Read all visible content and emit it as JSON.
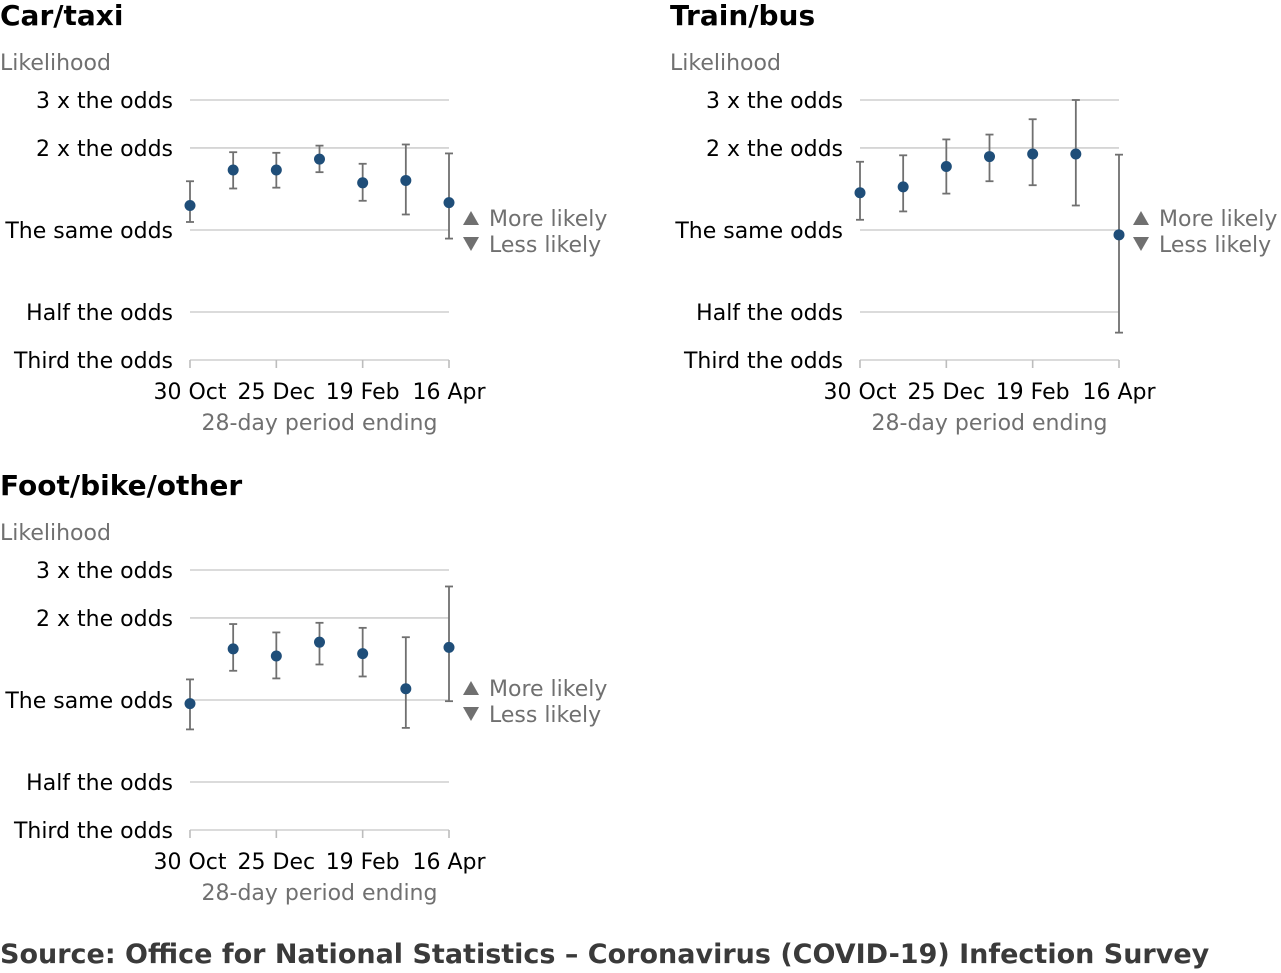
{
  "source": "Source: Office for National Statistics – Coronavirus (COVID-19) Infection Survey",
  "colors": {
    "point": "#1f4e79",
    "errbar": "#707070",
    "grid": "#cfcfcf",
    "muted": "#707070"
  },
  "icons": {
    "up": "triangle-up-icon",
    "down": "triangle-down-icon"
  },
  "chart_data": [
    {
      "type": "scatter",
      "title": "Car/taxi",
      "ylabel": "Likelihood",
      "xlabel": "28-day period ending",
      "y_scale": "log",
      "yticks": [
        {
          "value": 3,
          "label": "3 x the odds"
        },
        {
          "value": 2,
          "label": "2 x the odds"
        },
        {
          "value": 1,
          "label": "The same odds"
        },
        {
          "value": 0.5,
          "label": "Half the odds"
        },
        {
          "value": 0.3333,
          "label": "Third the odds"
        }
      ],
      "ylim": [
        0.3333,
        3
      ],
      "xticks": [
        "30 Oct",
        "25 Dec",
        "19 Feb",
        "16 Apr"
      ],
      "x": [
        "30 Oct",
        "27 Nov",
        "25 Dec",
        "22 Jan",
        "19 Feb",
        "19 Mar",
        "16 Apr"
      ],
      "values": [
        1.23,
        1.66,
        1.66,
        1.82,
        1.49,
        1.52,
        1.26
      ],
      "lower": [
        1.07,
        1.42,
        1.43,
        1.63,
        1.28,
        1.14,
        0.93
      ],
      "upper": [
        1.51,
        1.93,
        1.92,
        2.04,
        1.75,
        2.06,
        1.91
      ],
      "annotations": {
        "up": "More likely",
        "down": "Less likely"
      }
    },
    {
      "type": "scatter",
      "title": "Train/bus",
      "ylabel": "Likelihood",
      "xlabel": "28-day period ending",
      "y_scale": "log",
      "yticks": [
        {
          "value": 3,
          "label": "3 x the odds"
        },
        {
          "value": 2,
          "label": "2 x the odds"
        },
        {
          "value": 1,
          "label": "The same odds"
        },
        {
          "value": 0.5,
          "label": "Half the odds"
        },
        {
          "value": 0.3333,
          "label": "Third the odds"
        }
      ],
      "ylim": [
        0.3333,
        3
      ],
      "xticks": [
        "30 Oct",
        "25 Dec",
        "19 Feb",
        "16 Apr"
      ],
      "x": [
        "30 Oct",
        "27 Nov",
        "25 Dec",
        "22 Jan",
        "19 Feb",
        "19 Mar",
        "16 Apr"
      ],
      "values": [
        1.37,
        1.44,
        1.71,
        1.86,
        1.9,
        1.9,
        0.96
      ],
      "lower": [
        1.09,
        1.17,
        1.36,
        1.51,
        1.46,
        1.23,
        0.42
      ],
      "upper": [
        1.78,
        1.88,
        2.15,
        2.24,
        2.55,
        3.0,
        1.89
      ],
      "annotations": {
        "up": "More likely",
        "down": "Less likely"
      }
    },
    {
      "type": "scatter",
      "title": "Foot/bike/other",
      "ylabel": "Likelihood",
      "xlabel": "28-day period ending",
      "y_scale": "log",
      "yticks": [
        {
          "value": 3,
          "label": "3 x the odds"
        },
        {
          "value": 2,
          "label": "2 x the odds"
        },
        {
          "value": 1,
          "label": "The same odds"
        },
        {
          "value": 0.5,
          "label": "Half the odds"
        },
        {
          "value": 0.3333,
          "label": "Third the odds"
        }
      ],
      "ylim": [
        0.3333,
        3
      ],
      "xticks": [
        "30 Oct",
        "25 Dec",
        "19 Feb",
        "16 Apr"
      ],
      "x": [
        "30 Oct",
        "27 Nov",
        "25 Dec",
        "22 Jan",
        "19 Feb",
        "19 Mar",
        "16 Apr"
      ],
      "values": [
        0.97,
        1.54,
        1.45,
        1.63,
        1.48,
        1.1,
        1.56
      ],
      "lower": [
        0.78,
        1.28,
        1.2,
        1.35,
        1.22,
        0.79,
        0.99
      ],
      "upper": [
        1.19,
        1.9,
        1.77,
        1.92,
        1.84,
        1.7,
        2.61
      ],
      "annotations": {
        "up": "More likely",
        "down": "Less likely"
      }
    }
  ]
}
